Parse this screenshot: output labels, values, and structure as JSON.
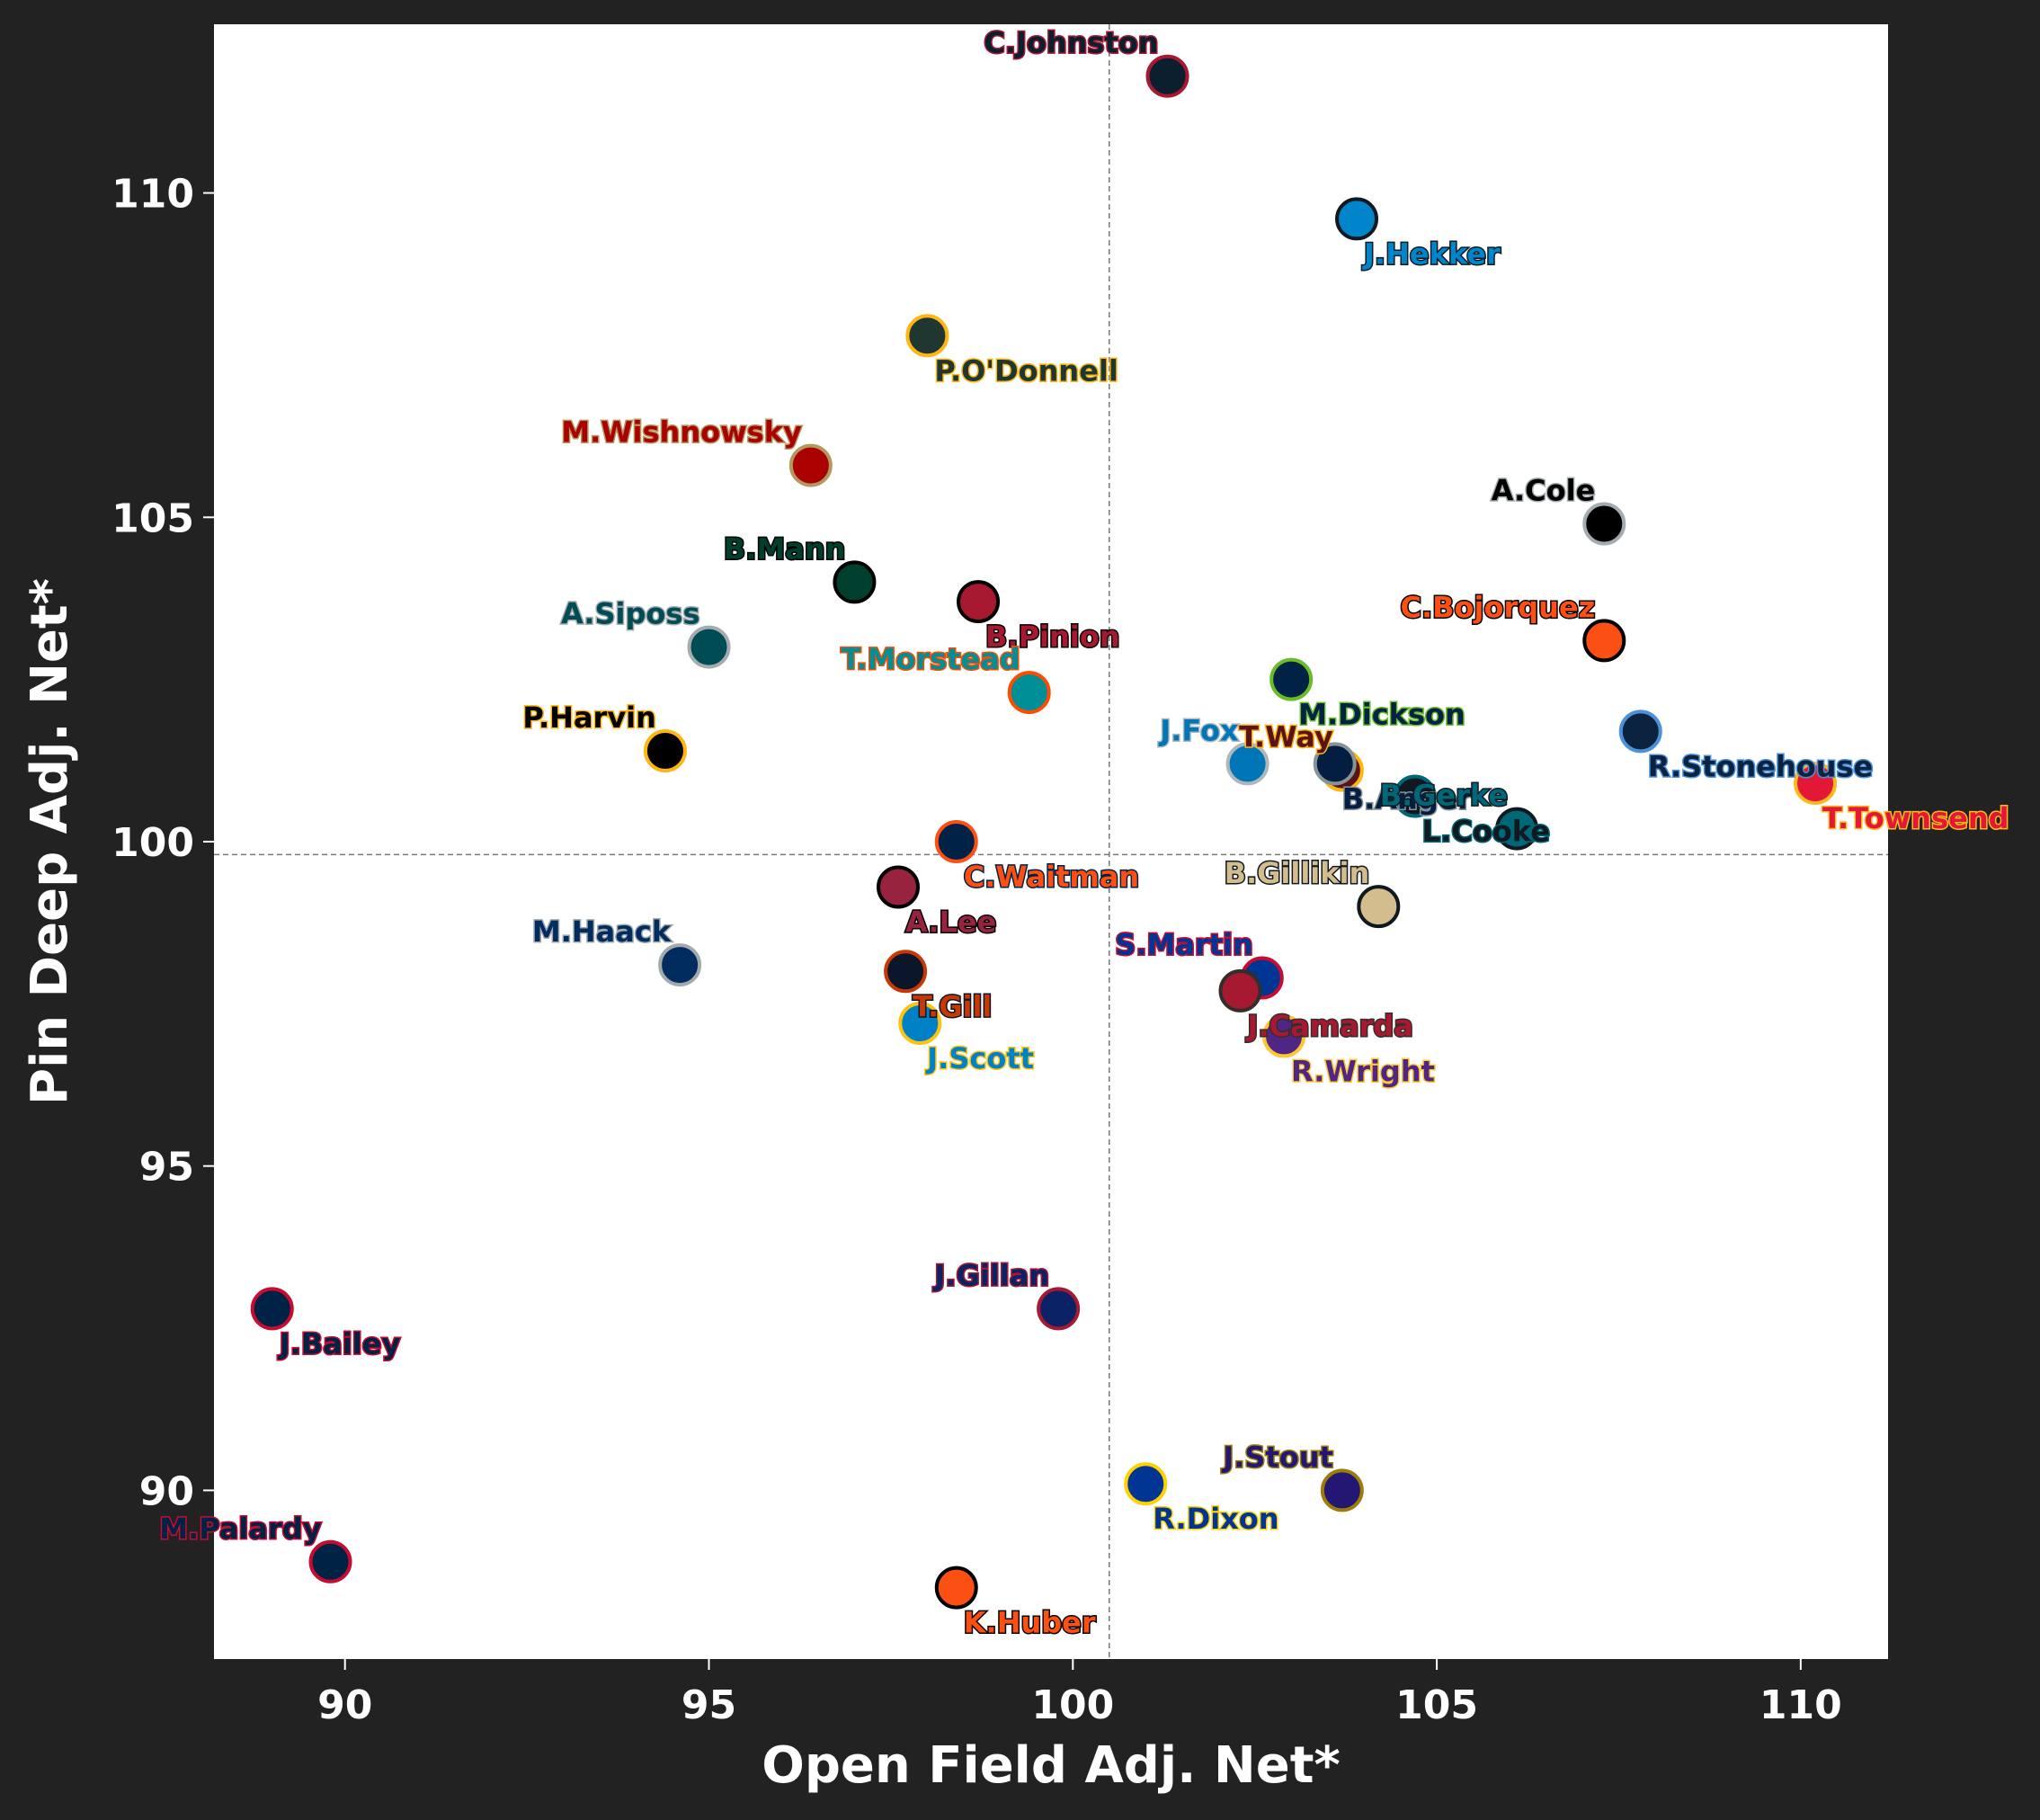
{
  "chart_data": {
    "type": "scatter",
    "xlabel": "Open Field Adj. Net*",
    "ylabel": "Pin Deep Adj. Net*",
    "xlim": [
      88.2,
      111.2
    ],
    "ylim": [
      87.4,
      112.6
    ],
    "xticks": [
      90,
      95,
      100,
      105,
      110
    ],
    "yticks": [
      90,
      95,
      100,
      105,
      110
    ],
    "reference_lines": {
      "x": 100.5,
      "y": 99.8
    },
    "grid": false,
    "points": [
      {
        "name": "C.Johnston",
        "x": 101.3,
        "y": 111.8,
        "fill": "#0b1f2e",
        "edge": "#a71930",
        "label_color": "#0b1f2e",
        "label_outline": "#a71930",
        "label_pos": "above-left"
      },
      {
        "name": "J.Hekker",
        "x": 103.9,
        "y": 109.6,
        "fill": "#0085ca",
        "edge": "#101820",
        "label_color": "#0085ca",
        "label_outline": "#101820",
        "label_pos": "below-right"
      },
      {
        "name": "P.O'Donnell",
        "x": 98.0,
        "y": 107.8,
        "fill": "#203731",
        "edge": "#ffb612",
        "label_color": "#203731",
        "label_outline": "#ffb612",
        "label_pos": "below-right"
      },
      {
        "name": "M.Wishnowsky",
        "x": 96.4,
        "y": 105.8,
        "fill": "#aa0000",
        "edge": "#b3995d",
        "label_color": "#aa0000",
        "label_outline": "#b3995d",
        "label_pos": "above-left"
      },
      {
        "name": "A.Cole",
        "x": 107.3,
        "y": 104.9,
        "fill": "#000000",
        "edge": "#a5acaf",
        "label_color": "#000000",
        "label_outline": "#a5acaf",
        "label_pos": "above-left"
      },
      {
        "name": "B.Mann",
        "x": 97.0,
        "y": 104.0,
        "fill": "#003f2d",
        "edge": "#000000",
        "label_color": "#003f2d",
        "label_outline": "#000000",
        "label_pos": "above-left"
      },
      {
        "name": "B.Pinion",
        "x": 98.7,
        "y": 103.7,
        "fill": "#a71930",
        "edge": "#000000",
        "label_color": "#a71930",
        "label_outline": "#000000",
        "label_pos": "below-right"
      },
      {
        "name": "C.Bojorquez",
        "x": 107.3,
        "y": 103.1,
        "fill": "#fb4f14",
        "edge": "#000000",
        "label_color": "#fb4f14",
        "label_outline": "#000000",
        "label_pos": "above-left"
      },
      {
        "name": "A.Siposs",
        "x": 95.0,
        "y": 103.0,
        "fill": "#004c54",
        "edge": "#a5acaf",
        "label_color": "#004c54",
        "label_outline": "#a5acaf",
        "label_pos": "above-left"
      },
      {
        "name": "M.Dickson",
        "x": 103.0,
        "y": 102.5,
        "fill": "#002244",
        "edge": "#69be28",
        "label_color": "#002244",
        "label_outline": "#69be28",
        "label_pos": "below-right"
      },
      {
        "name": "T.Morstead",
        "x": 99.4,
        "y": 102.3,
        "fill": "#008e97",
        "edge": "#fc4c02",
        "label_color": "#008e97",
        "label_outline": "#fc4c02",
        "label_pos": "above-left"
      },
      {
        "name": "R.Stonehouse",
        "x": 107.8,
        "y": 101.7,
        "fill": "#0c2340",
        "edge": "#4b92db",
        "label_color": "#0c2340",
        "label_outline": "#4b92db",
        "label_pos": "below-right"
      },
      {
        "name": "P.Harvin",
        "x": 94.4,
        "y": 101.4,
        "fill": "#000000",
        "edge": "#ffb612",
        "label_color": "#000000",
        "label_outline": "#ffb612",
        "label_pos": "above-left"
      },
      {
        "name": "T.Way",
        "x": 103.7,
        "y": 101.1,
        "fill": "#5a1414",
        "edge": "#ffb612",
        "label_color": "#5a1414",
        "label_outline": "#ffb612",
        "label_pos": "above-left"
      },
      {
        "name": "B.Anger",
        "x": 103.6,
        "y": 101.2,
        "fill": "#041e42",
        "edge": "#869397",
        "label_color": "#041e42",
        "label_outline": "#869397",
        "label_pos": "below-right"
      },
      {
        "name": "J.Fox",
        "x": 102.4,
        "y": 101.2,
        "fill": "#0076b6",
        "edge": "#b0b7bc",
        "label_color": "#0076b6",
        "label_outline": "#b0b7bc",
        "label_pos": "above-left"
      },
      {
        "name": "T.Townsend",
        "x": 110.2,
        "y": 100.9,
        "fill": "#e31837",
        "edge": "#ffb81c",
        "label_color": "#e31837",
        "label_outline": "#ffb81c",
        "label_pos": "below-right"
      },
      {
        "name": "L.Cooke",
        "x": 104.7,
        "y": 100.7,
        "fill": "#101820",
        "edge": "#006778",
        "label_color": "#101820",
        "label_outline": "#006778",
        "label_pos": "below-right"
      },
      {
        "name": "B.Gerke",
        "x": 106.1,
        "y": 100.2,
        "fill": "#006778",
        "edge": "#101820",
        "label_color": "#006778",
        "label_outline": "#101820",
        "label_pos": "above-left"
      },
      {
        "name": "C.Waitman",
        "x": 98.4,
        "y": 100.0,
        "fill": "#002244",
        "edge": "#fb4f14",
        "label_color": "#fb4f14",
        "label_outline": "#002244",
        "label_pos": "below-right"
      },
      {
        "name": "A.Lee",
        "x": 97.6,
        "y": 99.3,
        "fill": "#97233f",
        "edge": "#000000",
        "label_color": "#97233f",
        "label_outline": "#000000",
        "label_pos": "below-right"
      },
      {
        "name": "B.Gillikin",
        "x": 104.2,
        "y": 99.0,
        "fill": "#d3bc8d",
        "edge": "#101820",
        "label_color": "#d3bc8d",
        "label_outline": "#101820",
        "label_pos": "above-left"
      },
      {
        "name": "M.Haack",
        "x": 94.6,
        "y": 98.1,
        "fill": "#002c5f",
        "edge": "#a2aaad",
        "label_color": "#002c5f",
        "label_outline": "#a2aaad",
        "label_pos": "above-left"
      },
      {
        "name": "T.Gill",
        "x": 97.7,
        "y": 98.0,
        "fill": "#0b162a",
        "edge": "#c83803",
        "label_color": "#c83803",
        "label_outline": "#0b162a",
        "label_pos": "below-right"
      },
      {
        "name": "S.Martin",
        "x": 102.6,
        "y": 97.9,
        "fill": "#003594",
        "edge": "#c60c30",
        "label_color": "#003594",
        "label_outline": "#c60c30",
        "label_pos": "above-left"
      },
      {
        "name": "J.Camarda",
        "x": 102.3,
        "y": 97.7,
        "fill": "#a71930",
        "edge": "#322f2b",
        "label_color": "#a71930",
        "label_outline": "#322f2b",
        "label_pos": "below-right"
      },
      {
        "name": "J.Scott",
        "x": 97.9,
        "y": 97.2,
        "fill": "#0080c6",
        "edge": "#ffc20e",
        "label_color": "#0080c6",
        "label_outline": "#ffc20e",
        "label_pos": "below-right"
      },
      {
        "name": "R.Wright",
        "x": 102.9,
        "y": 97.0,
        "fill": "#4f2683",
        "edge": "#ffc62f",
        "label_color": "#4f2683",
        "label_outline": "#ffc62f",
        "label_pos": "below-right"
      },
      {
        "name": "J.Gillan",
        "x": 99.8,
        "y": 92.8,
        "fill": "#0b2265",
        "edge": "#a71930",
        "label_color": "#0b2265",
        "label_outline": "#a71930",
        "label_pos": "above-left"
      },
      {
        "name": "J.Bailey",
        "x": 89.0,
        "y": 92.8,
        "fill": "#002244",
        "edge": "#c60c30",
        "label_color": "#002244",
        "label_outline": "#c60c30",
        "label_pos": "below-right"
      },
      {
        "name": "R.Dixon",
        "x": 101.0,
        "y": 90.1,
        "fill": "#003594",
        "edge": "#ffd100",
        "label_color": "#003594",
        "label_outline": "#ffd100",
        "label_pos": "below-right"
      },
      {
        "name": "J.Stout",
        "x": 103.7,
        "y": 90.0,
        "fill": "#241773",
        "edge": "#9e7c0c",
        "label_color": "#241773",
        "label_outline": "#9e7c0c",
        "label_pos": "above-left"
      },
      {
        "name": "M.Palardy",
        "x": 89.8,
        "y": 88.9,
        "fill": "#002244",
        "edge": "#c60c30",
        "label_color": "#002244",
        "label_outline": "#c60c30",
        "label_pos": "above-left"
      },
      {
        "name": "K.Huber",
        "x": 98.4,
        "y": 88.5,
        "fill": "#fb4f14",
        "edge": "#000000",
        "label_color": "#fb4f14",
        "label_outline": "#000000",
        "label_pos": "below-right"
      }
    ]
  },
  "colors": {
    "figure_background": "#222222",
    "plot_background": "#ffffff",
    "text": "#ffffff",
    "reference_line": "#777777"
  }
}
